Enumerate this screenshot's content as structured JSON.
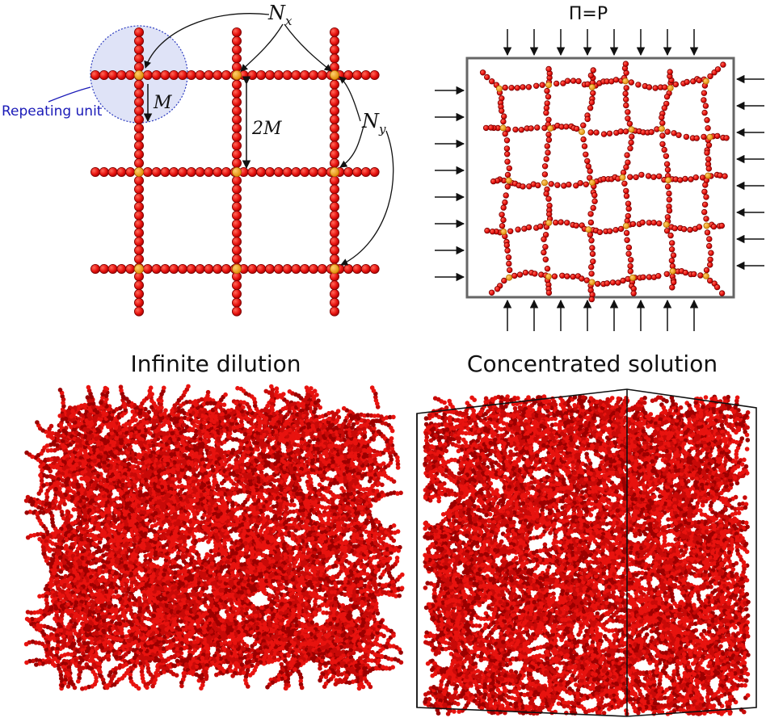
{
  "panel_a": {
    "label_nx": "N",
    "label_nx_sub": "x",
    "label_ny": "N",
    "label_ny_sub": "y",
    "label_m": "M",
    "label_2m": "2M",
    "label_repeating_unit": "Repeating unit"
  },
  "panel_b": {
    "label_pressure": "Π=P"
  },
  "panel_c": {
    "title": "Infinite dilution"
  },
  "panel_d": {
    "title": "Concentrated solution"
  },
  "colors": {
    "bead": "#e8130f",
    "bead_stroke": "#8a0000",
    "crosslink": "#f5a21a",
    "repeating_unit_fill": "#dfe3f7",
    "repeating_unit_stroke": "#2b3bbf",
    "box_stroke": "#666666",
    "label_blue": "#1a1ab8"
  }
}
